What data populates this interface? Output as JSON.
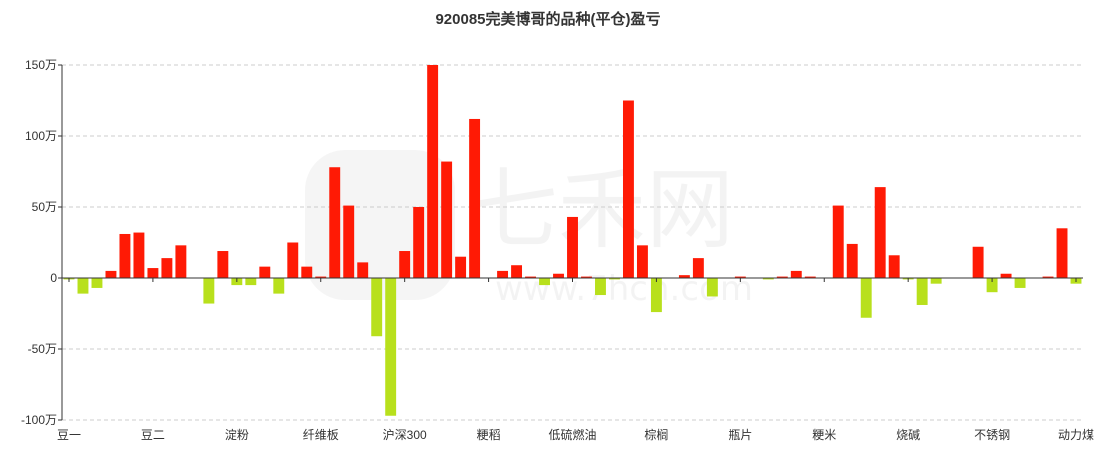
{
  "chart_data": {
    "type": "bar",
    "title": "920085完美博哥的品种(平仓)盈亏",
    "ylim": [
      -100,
      150
    ],
    "yticks": [
      -100,
      -50,
      0,
      50,
      100,
      150
    ],
    "ytick_labels": [
      "-100万",
      "-50万",
      "0",
      "50万",
      "100万",
      "150万"
    ],
    "grid": true,
    "watermark": "七禾网 www.7hcn.com",
    "x_labels": [
      {
        "index": 0,
        "label": "豆一"
      },
      {
        "index": 6,
        "label": "豆二"
      },
      {
        "index": 12,
        "label": "淀粉"
      },
      {
        "index": 18,
        "label": "纤维板"
      },
      {
        "index": 24,
        "label": "沪深300"
      },
      {
        "index": 30,
        "label": "粳稻"
      },
      {
        "index": 36,
        "label": "低硫燃油"
      },
      {
        "index": 42,
        "label": "棕榈"
      },
      {
        "index": 48,
        "label": "瓶片"
      },
      {
        "index": 54,
        "label": "粳米"
      },
      {
        "index": 60,
        "label": "烧碱"
      },
      {
        "index": 66,
        "label": "不锈钢"
      },
      {
        "index": 72,
        "label": "动力煤"
      }
    ],
    "values": [
      -1,
      -11,
      -7,
      5,
      31,
      32,
      7,
      14,
      23,
      0,
      -18,
      19,
      -5,
      -5,
      8,
      -11,
      25,
      8,
      1,
      78,
      51,
      11,
      -41,
      -97,
      19,
      50,
      150,
      82,
      15,
      112,
      0,
      5,
      9,
      1,
      -5,
      3,
      43,
      1,
      -12,
      -1,
      125,
      23,
      -24,
      0,
      2,
      14,
      -13,
      0,
      1,
      0,
      -1,
      1,
      5,
      1,
      0,
      51,
      24,
      -28,
      64,
      16,
      -1,
      -19,
      -4,
      0,
      0,
      22,
      -10,
      3,
      -7,
      0,
      1,
      35,
      -4
    ],
    "colors": {
      "positive": "#ff1a05",
      "negative": "#b8e01c",
      "grid": "#cccccc",
      "axis": "#333333"
    }
  }
}
